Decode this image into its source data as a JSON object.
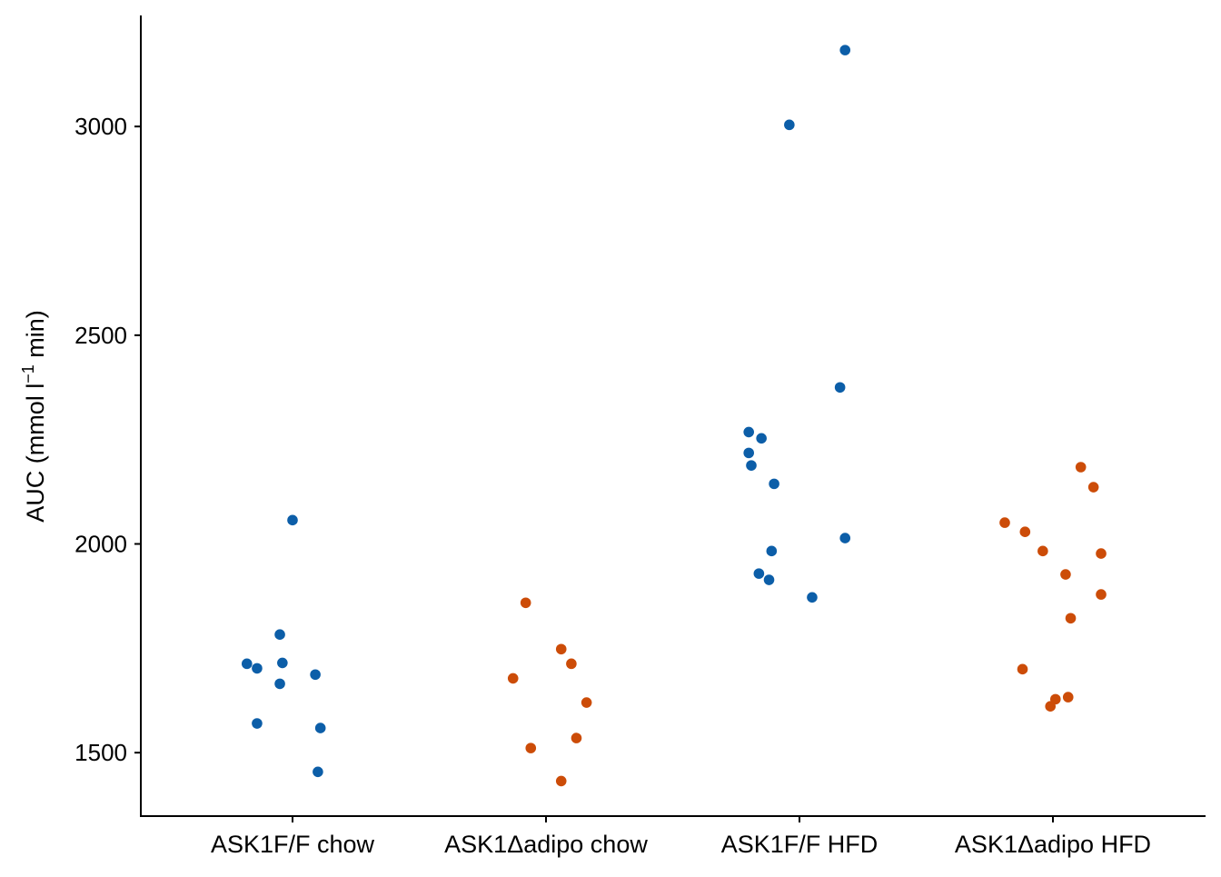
{
  "chart_data": {
    "type": "scatter",
    "title": "",
    "xlabel": "",
    "ylabel": "AUC (mmol l",
    "ylabel_sup": "−1",
    "ylabel_suffix": " min)",
    "ylim": [
      1348,
      3266
    ],
    "yticks": [
      1500,
      2000,
      2500,
      3000
    ],
    "grid": false,
    "legend": "none",
    "categories": [
      "ASK1F/F chow",
      "ASK1Δadipo chow",
      "ASK1F/F HFD",
      "ASK1Δadipo HFD"
    ],
    "colors": [
      "#0c5ea8",
      "#cc4c08",
      "#0c5ea8",
      "#cc4c08"
    ],
    "series": [
      {
        "name": "ASK1F/F chow",
        "values": [
          1713,
          1702,
          1783,
          1715,
          1665,
          1687,
          2057,
          1570,
          1559,
          1454
        ],
        "jitter": [
          -0.18,
          -0.14,
          -0.05,
          -0.04,
          -0.05,
          0.09,
          0.0,
          -0.14,
          0.11,
          0.1
        ]
      },
      {
        "name": "ASK1Δadipo chow",
        "values": [
          1859,
          1748,
          1713,
          1678,
          1620,
          1511,
          1535,
          1432
        ],
        "jitter": [
          -0.08,
          0.06,
          0.1,
          -0.13,
          0.16,
          -0.06,
          0.12,
          0.06
        ]
      },
      {
        "name": "ASK1F/F HFD",
        "values": [
          3183,
          3004,
          2375,
          2268,
          2253,
          2218,
          2188,
          2144,
          1983,
          2014,
          1929,
          1914,
          1872
        ],
        "jitter": [
          0.18,
          -0.04,
          0.16,
          -0.2,
          -0.15,
          -0.2,
          -0.19,
          -0.1,
          -0.11,
          0.18,
          -0.16,
          -0.12,
          0.05
        ]
      },
      {
        "name": "ASK1Δadipo HFD",
        "values": [
          2184,
          2136,
          2051,
          2029,
          1983,
          1977,
          1927,
          1879,
          1822,
          1700,
          1628,
          1611,
          1633
        ],
        "jitter": [
          0.11,
          0.16,
          -0.19,
          -0.11,
          -0.04,
          0.19,
          0.05,
          0.19,
          0.07,
          -0.12,
          0.01,
          -0.01,
          0.06
        ]
      }
    ]
  }
}
